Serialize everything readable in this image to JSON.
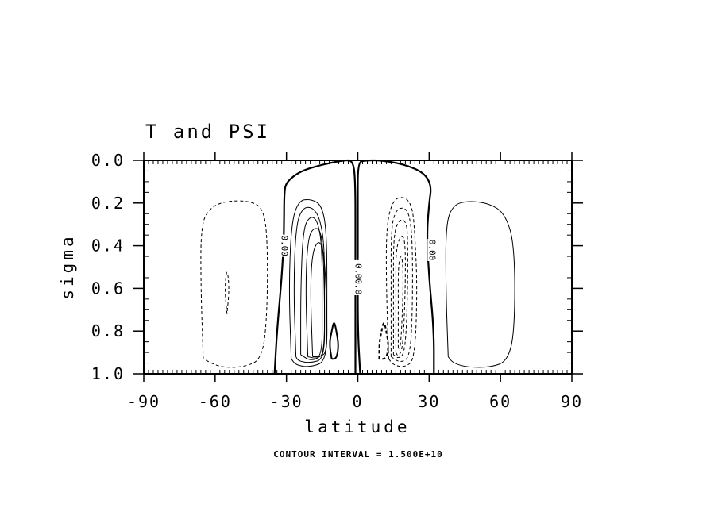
{
  "chart_data": {
    "type": "contour",
    "title": "T and PSI",
    "xlabel": "latitude",
    "ylabel": "sigma",
    "xlim": [
      -90,
      90
    ],
    "ylim": [
      0.0,
      1.0
    ],
    "y_inverted": true,
    "x_ticks": [
      -90,
      -60,
      -30,
      0,
      30,
      60,
      90
    ],
    "x_tick_labels": [
      "-90",
      "-60",
      "-30",
      "0",
      "30",
      "60",
      "90"
    ],
    "y_ticks": [
      0.0,
      0.2,
      0.4,
      0.6,
      0.8,
      1.0
    ],
    "y_tick_labels": [
      "0.0",
      "0.2",
      "0.4",
      "0.6",
      "0.8",
      "1.0"
    ],
    "footer": "CONTOUR INTERVAL = 1.500E+10",
    "contour_labels": [
      {
        "text": "0.00",
        "x": -31,
        "y": 0.4
      },
      {
        "text": "0.0",
        "x": 0,
        "y": 0.52
      },
      {
        "text": "00.0",
        "x": 0,
        "y": 0.58
      },
      {
        "text": "0.00",
        "x": 31,
        "y": 0.42
      }
    ],
    "contours": [
      {
        "style": "zero",
        "points": [
          [
            -35,
            1.0
          ],
          [
            -34,
            0.8
          ],
          [
            -32,
            0.55
          ],
          [
            -31,
            0.35
          ],
          [
            -31,
            0.15
          ],
          [
            -30,
            0.1
          ],
          [
            -24,
            0.05
          ],
          [
            -15,
            0.02
          ],
          [
            -6,
            0.0
          ],
          [
            -2,
            0.0
          ],
          [
            -1,
            0.1
          ],
          [
            -1,
            0.4
          ],
          [
            -1,
            0.7
          ],
          [
            -1,
            0.9
          ],
          [
            -1,
            1.0
          ]
        ]
      },
      {
        "style": "zero",
        "points": [
          [
            1,
            1.0
          ],
          [
            0,
            0.8
          ],
          [
            0,
            0.5
          ],
          [
            0,
            0.2
          ],
          [
            0,
            0.01
          ],
          [
            3,
            0.0
          ],
          [
            10,
            0.0
          ],
          [
            20,
            0.02
          ],
          [
            28,
            0.06
          ],
          [
            31,
            0.12
          ],
          [
            30,
            0.2
          ],
          [
            29,
            0.35
          ],
          [
            30,
            0.55
          ],
          [
            32,
            0.8
          ],
          [
            32,
            1.0
          ]
        ]
      },
      {
        "style": "solid",
        "points": [
          [
            -28,
            0.93
          ],
          [
            -29,
            0.6
          ],
          [
            -28,
            0.3
          ],
          [
            -25,
            0.19
          ],
          [
            -20,
            0.18
          ],
          [
            -15,
            0.21
          ],
          [
            -13,
            0.35
          ],
          [
            -13,
            0.7
          ],
          [
            -13,
            0.94
          ],
          [
            -20,
            0.97
          ],
          [
            -26,
            0.96
          ],
          [
            -28,
            0.93
          ]
        ]
      },
      {
        "style": "solid",
        "points": [
          [
            -26,
            0.92
          ],
          [
            -27,
            0.6
          ],
          [
            -26,
            0.3
          ],
          [
            -23,
            0.22
          ],
          [
            -19,
            0.22
          ],
          [
            -16,
            0.27
          ],
          [
            -14,
            0.4
          ],
          [
            -14,
            0.7
          ],
          [
            -14,
            0.93
          ],
          [
            -20,
            0.95
          ],
          [
            -25,
            0.94
          ],
          [
            -26,
            0.92
          ]
        ]
      },
      {
        "style": "solid",
        "points": [
          [
            -24,
            0.91
          ],
          [
            -24,
            0.6
          ],
          [
            -23,
            0.32
          ],
          [
            -20,
            0.26
          ],
          [
            -17,
            0.28
          ],
          [
            -15,
            0.4
          ],
          [
            -15,
            0.7
          ],
          [
            -15,
            0.92
          ],
          [
            -20,
            0.94
          ],
          [
            -24,
            0.91
          ]
        ]
      },
      {
        "style": "solid",
        "points": [
          [
            -21,
            0.92
          ],
          [
            -22,
            0.6
          ],
          [
            -21,
            0.36
          ],
          [
            -18,
            0.31
          ],
          [
            -15,
            0.34
          ],
          [
            -14,
            0.6
          ],
          [
            -14,
            0.9
          ],
          [
            -17,
            0.93
          ],
          [
            -21,
            0.92
          ]
        ]
      },
      {
        "style": "solid",
        "points": [
          [
            -19,
            0.92
          ],
          [
            -20,
            0.6
          ],
          [
            -19,
            0.42
          ],
          [
            -16,
            0.37
          ],
          [
            -14,
            0.45
          ],
          [
            -13,
            0.7
          ],
          [
            -13,
            0.9
          ],
          [
            -16,
            0.92
          ],
          [
            -19,
            0.92
          ]
        ]
      },
      {
        "style": "solid_bold",
        "points": [
          [
            -11,
            0.93
          ],
          [
            -12,
            0.86
          ],
          [
            -11,
            0.8
          ],
          [
            -10,
            0.75
          ],
          [
            -9,
            0.8
          ],
          [
            -8,
            0.87
          ],
          [
            -9,
            0.93
          ],
          [
            -11,
            0.93
          ]
        ]
      },
      {
        "style": "dashed",
        "points": [
          [
            13,
            0.93
          ],
          [
            12,
            0.6
          ],
          [
            12,
            0.3
          ],
          [
            15,
            0.18
          ],
          [
            20,
            0.17
          ],
          [
            23,
            0.22
          ],
          [
            24,
            0.35
          ],
          [
            25,
            0.6
          ],
          [
            24,
            0.93
          ],
          [
            20,
            0.97
          ],
          [
            15,
            0.96
          ],
          [
            13,
            0.93
          ]
        ]
      },
      {
        "style": "dashed",
        "points": [
          [
            14,
            0.92
          ],
          [
            14,
            0.6
          ],
          [
            14,
            0.32
          ],
          [
            16,
            0.23
          ],
          [
            20,
            0.22
          ],
          [
            22,
            0.27
          ],
          [
            23,
            0.4
          ],
          [
            23,
            0.7
          ],
          [
            22,
            0.92
          ],
          [
            18,
            0.95
          ],
          [
            14,
            0.92
          ]
        ]
      },
      {
        "style": "dashed",
        "points": [
          [
            15,
            0.91
          ],
          [
            15,
            0.6
          ],
          [
            15,
            0.36
          ],
          [
            17,
            0.28
          ],
          [
            20,
            0.28
          ],
          [
            21,
            0.34
          ],
          [
            21,
            0.6
          ],
          [
            20,
            0.9
          ],
          [
            17,
            0.93
          ],
          [
            15,
            0.91
          ]
        ]
      },
      {
        "style": "dashed",
        "points": [
          [
            16,
            0.9
          ],
          [
            16,
            0.6
          ],
          [
            16,
            0.42
          ],
          [
            18,
            0.35
          ],
          [
            20,
            0.37
          ],
          [
            20,
            0.6
          ],
          [
            19,
            0.88
          ],
          [
            17,
            0.92
          ],
          [
            16,
            0.9
          ]
        ]
      },
      {
        "style": "dashed",
        "points": [
          [
            17,
            0.88
          ],
          [
            17,
            0.65
          ],
          [
            17,
            0.5
          ],
          [
            18,
            0.44
          ],
          [
            19,
            0.48
          ],
          [
            19,
            0.65
          ],
          [
            18,
            0.88
          ],
          [
            17,
            0.88
          ]
        ]
      },
      {
        "style": "dashed_bold",
        "points": [
          [
            9,
            0.93
          ],
          [
            9,
            0.86
          ],
          [
            10,
            0.8
          ],
          [
            11,
            0.75
          ],
          [
            12,
            0.8
          ],
          [
            13,
            0.87
          ],
          [
            12,
            0.93
          ],
          [
            9,
            0.93
          ]
        ]
      },
      {
        "style": "dashed",
        "points": [
          [
            -65,
            0.93
          ],
          [
            -66,
            0.6
          ],
          [
            -66,
            0.3
          ],
          [
            -62,
            0.22
          ],
          [
            -55,
            0.19
          ],
          [
            -46,
            0.19
          ],
          [
            -40,
            0.22
          ],
          [
            -38,
            0.35
          ],
          [
            -38,
            0.7
          ],
          [
            -40,
            0.93
          ],
          [
            -48,
            0.97
          ],
          [
            -58,
            0.97
          ],
          [
            -65,
            0.93
          ]
        ]
      },
      {
        "style": "dashed",
        "points": [
          [
            -55,
            0.72
          ],
          [
            -56,
            0.6
          ],
          [
            -55,
            0.5
          ],
          [
            -54,
            0.6
          ],
          [
            -55,
            0.72
          ]
        ]
      },
      {
        "style": "solid",
        "points": [
          [
            38,
            0.92
          ],
          [
            37,
            0.6
          ],
          [
            37,
            0.3
          ],
          [
            40,
            0.21
          ],
          [
            46,
            0.19
          ],
          [
            55,
            0.2
          ],
          [
            62,
            0.25
          ],
          [
            66,
            0.4
          ],
          [
            66,
            0.8
          ],
          [
            63,
            0.94
          ],
          [
            56,
            0.97
          ],
          [
            46,
            0.97
          ],
          [
            40,
            0.95
          ],
          [
            38,
            0.92
          ]
        ]
      }
    ]
  }
}
